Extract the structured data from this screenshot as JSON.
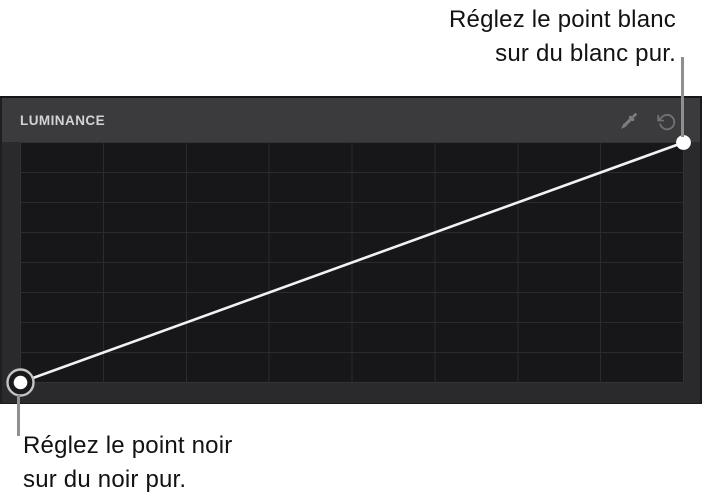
{
  "panel": {
    "title": "LUMINANCE",
    "header_icons": [
      {
        "name": "eyedropper-icon",
        "purpose": "sample white/black point from image"
      },
      {
        "name": "reset-icon",
        "purpose": "reset curve"
      }
    ],
    "colors": {
      "header_bg": "#3b3b3d",
      "body_bg": "#2a2a2c",
      "grid_bg": "#171719",
      "grid_line": "#2b2b2d",
      "grid_border": "#323234",
      "curve": "#f2f2f2",
      "point_fill": "#ffffff",
      "point_ring": "#c4c4c4",
      "icon": "#7d7d7f",
      "title_text": "#d3d3d4"
    }
  },
  "annotations": {
    "callout_color": "#8f8f8f",
    "white_point": {
      "line1": "Réglez le point blanc",
      "line2": "sur du blanc pur."
    },
    "black_point": {
      "line1": "Réglez le point noir",
      "line2": "sur du noir pur."
    }
  },
  "chart_data": {
    "type": "line",
    "title": "LUMINANCE",
    "description": "Identity luminance curve (straight diagonal) from black point to white point",
    "grid": {
      "rows": 8,
      "cols": 8,
      "grid_on": true
    },
    "xlim": [
      0,
      1
    ],
    "ylim": [
      0,
      1
    ],
    "points": [
      {
        "name": "black-point",
        "x": 0,
        "y": 0,
        "style": "selected-ring"
      },
      {
        "name": "white-point",
        "x": 1,
        "y": 1,
        "style": "filled"
      }
    ]
  }
}
